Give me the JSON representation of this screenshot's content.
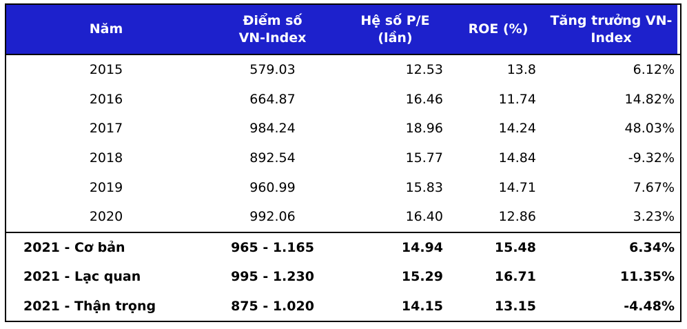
{
  "chart_data": {
    "type": "table",
    "columns": [
      [
        "Năm"
      ],
      [
        "Điểm số",
        "VN-Index"
      ],
      [
        "Hệ số P/E",
        "(lần)"
      ],
      [
        "ROE (%)"
      ],
      [
        "Tăng trưởng VN-",
        "Index"
      ]
    ],
    "rows": [
      {
        "kind": "history",
        "cells": [
          "2015",
          "579.03",
          "12.53",
          "13.8",
          "6.12%"
        ]
      },
      {
        "kind": "history",
        "cells": [
          "2016",
          "664.87",
          "16.46",
          "11.74",
          "14.82%"
        ]
      },
      {
        "kind": "history",
        "cells": [
          "2017",
          "984.24",
          "18.96",
          "14.24",
          "48.03%"
        ]
      },
      {
        "kind": "history",
        "cells": [
          "2018",
          "892.54",
          "15.77",
          "14.84",
          "-9.32%"
        ]
      },
      {
        "kind": "history",
        "cells": [
          "2019",
          "960.99",
          "15.83",
          "14.71",
          "7.67%"
        ]
      },
      {
        "kind": "history",
        "cells": [
          "2020",
          "992.06",
          "16.40",
          "12.86",
          "3.23%"
        ]
      },
      {
        "kind": "forecast",
        "cells": [
          "2021 - Cơ bản",
          "965 - 1.165",
          "14.94",
          "15.48",
          "6.34%"
        ]
      },
      {
        "kind": "forecast",
        "cells": [
          "2021 - Lạc quan",
          "995 - 1.230",
          "15.29",
          "16.71",
          "11.35%"
        ]
      },
      {
        "kind": "forecast",
        "cells": [
          "2021 - Thận trọng",
          "875 - 1.020",
          "14.15",
          "13.15",
          "-4.48%"
        ]
      }
    ],
    "colors": {
      "header_bg": "#1d21cc",
      "header_text": "#ffffff",
      "body_text": "#000000",
      "border": "#000000"
    }
  }
}
